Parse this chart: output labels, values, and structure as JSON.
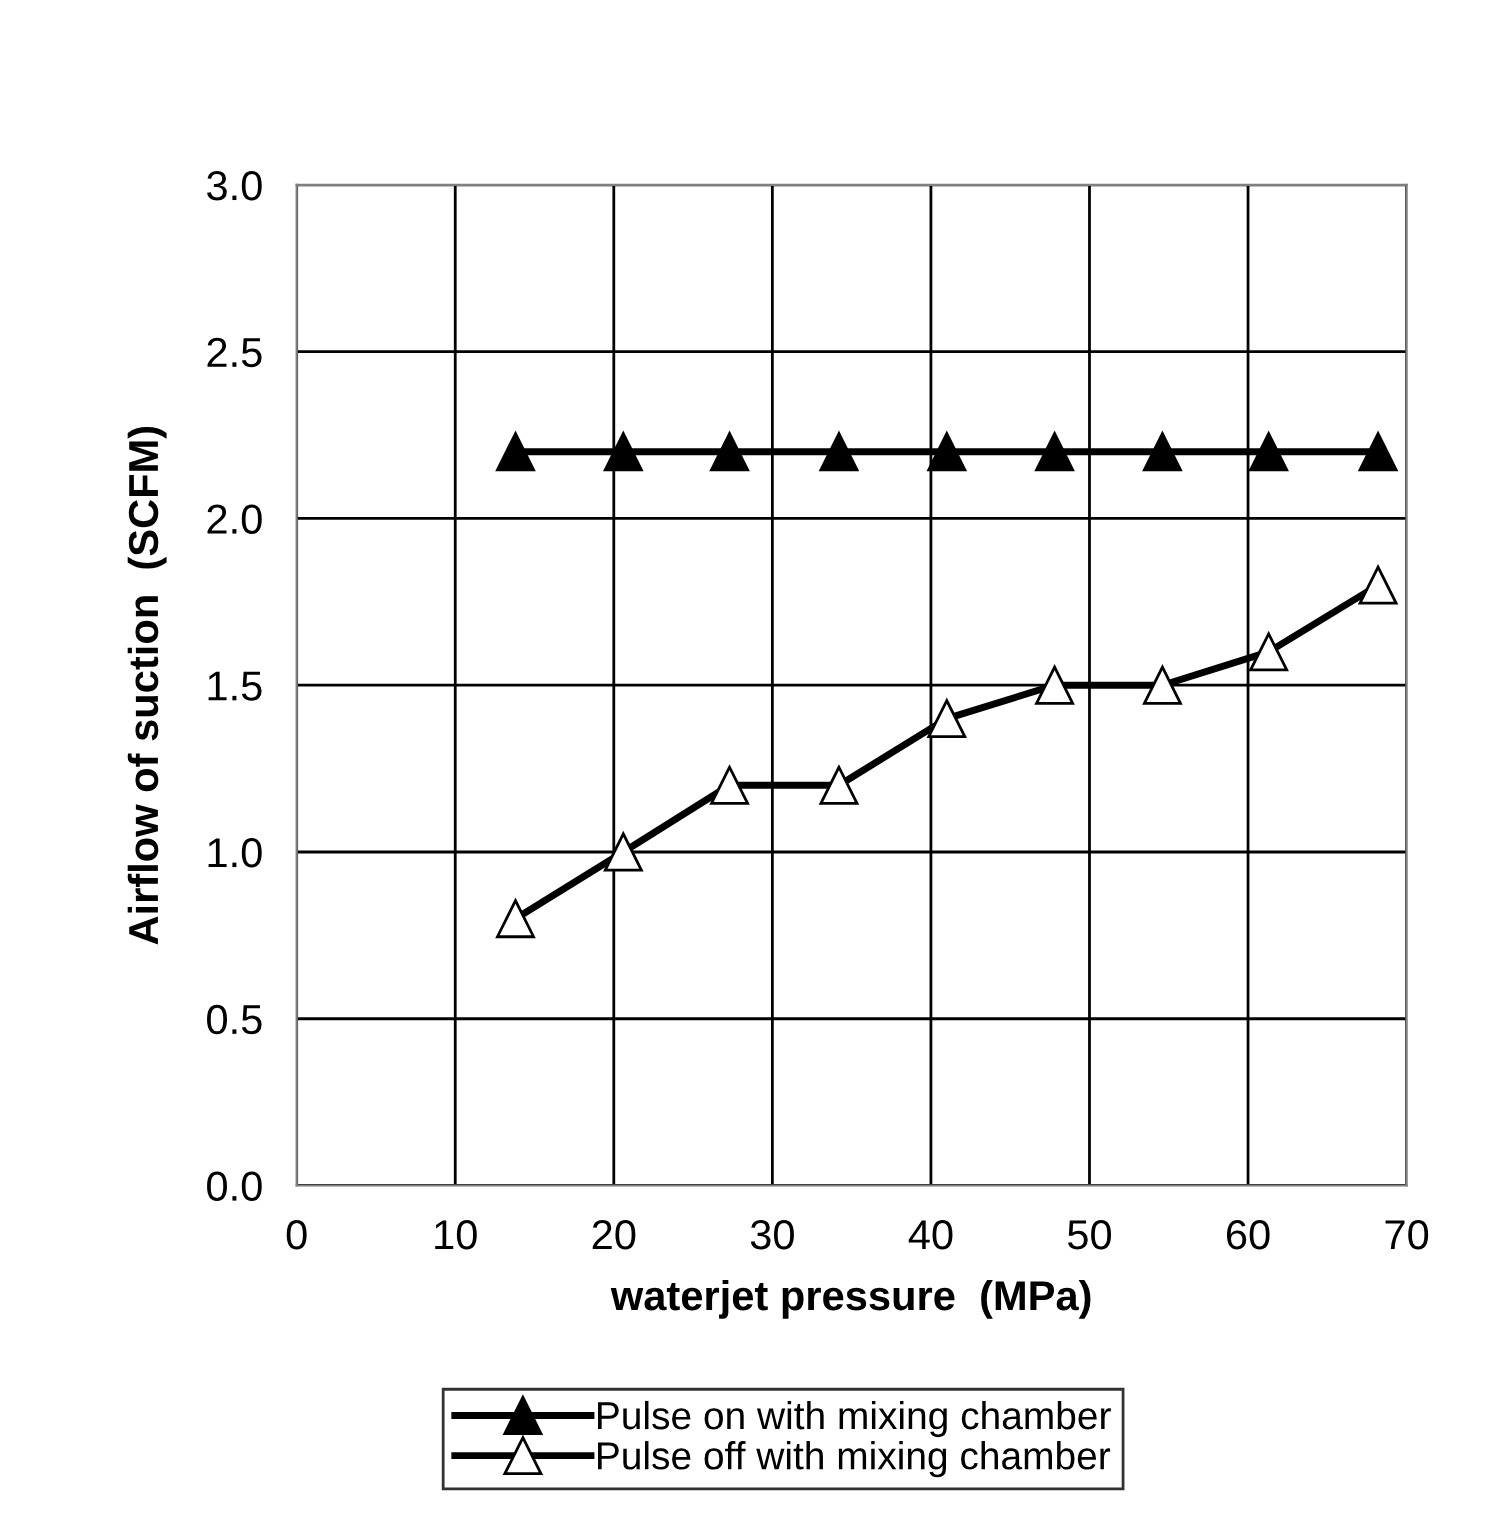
{
  "chart_data": {
    "type": "line",
    "xlabel": "waterjet pressure  (MPa)",
    "ylabel": "Airflow of suction  (SCFM)",
    "xlim": [
      0,
      70
    ],
    "xticks": [
      0,
      10,
      20,
      30,
      40,
      50,
      60,
      70
    ],
    "ylim": [
      0,
      3.0
    ],
    "yticks": [
      {
        "value": 0,
        "label": "0.0"
      },
      {
        "value": 0.5,
        "label": "0.5"
      },
      {
        "value": 1.0,
        "label": "1.0"
      },
      {
        "value": 1.5,
        "label": "1.5"
      },
      {
        "value": 2.0,
        "label": "2.0"
      },
      {
        "value": 2.5,
        "label": "2.5"
      },
      {
        "value": 3.0,
        "label": "3.0"
      }
    ],
    "x": [
      13.8,
      20.6,
      27.3,
      34.2,
      41.0,
      47.8,
      54.6,
      61.3,
      68.2
    ],
    "series": [
      {
        "name": "Pulse on with mixing chamber",
        "color": "#000000",
        "marker": "triangle",
        "values": [
          2.2,
          2.2,
          2.2,
          2.2,
          2.2,
          2.2,
          2.2,
          2.2,
          2.2
        ]
      },
      {
        "name": "Pulse off with mixing chamber",
        "color": "#000000",
        "marker": "triangle",
        "values": [
          0.8,
          1.0,
          1.2,
          1.2,
          1.4,
          1.5,
          1.5,
          1.6,
          1.8
        ]
      }
    ],
    "grid": true,
    "legend": "bottom",
    "line_style": "solid"
  }
}
